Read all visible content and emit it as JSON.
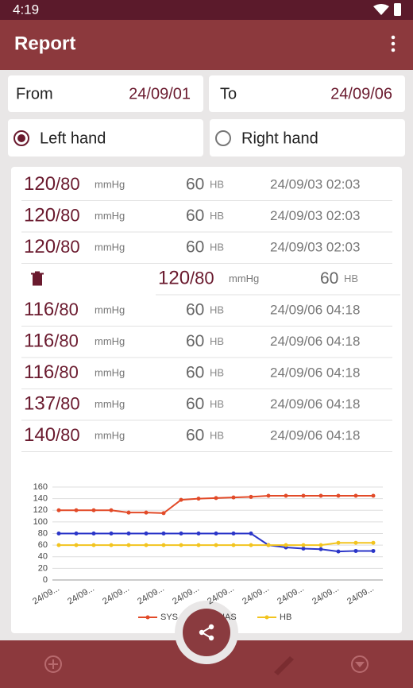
{
  "status_bar": {
    "time": "4:19"
  },
  "toolbar": {
    "title": "Report"
  },
  "range": {
    "from_label": "From",
    "from_value": "24/09/01",
    "to_label": "To",
    "to_value": "24/09/06"
  },
  "hand": {
    "options": [
      "Left hand",
      "Right hand"
    ],
    "selected": 0
  },
  "records": {
    "separator": "/",
    "rows": [
      {
        "sys": 120,
        "dias": 80,
        "pressure_unit": "mmHg",
        "hb": 60,
        "hb_unit": "HB",
        "datetime": "24/09/03 02:03"
      },
      {
        "sys": 120,
        "dias": 80,
        "pressure_unit": "mmHg",
        "hb": 60,
        "hb_unit": "HB",
        "datetime": "24/09/03 02:03"
      },
      {
        "sys": 120,
        "dias": 80,
        "pressure_unit": "mmHg",
        "hb": 60,
        "hb_unit": "HB",
        "datetime": "24/09/03 02:03"
      },
      {
        "sys": 120,
        "dias": 80,
        "pressure_unit": "mmHg",
        "hb": 60,
        "hb_unit": "HB",
        "swiped": true
      },
      {
        "sys": 116,
        "dias": 80,
        "pressure_unit": "mmHg",
        "hb": 60,
        "hb_unit": "HB",
        "datetime": "24/09/06 04:18"
      },
      {
        "sys": 116,
        "dias": 80,
        "pressure_unit": "mmHg",
        "hb": 60,
        "hb_unit": "HB",
        "datetime": "24/09/06 04:18"
      },
      {
        "sys": 116,
        "dias": 80,
        "pressure_unit": "mmHg",
        "hb": 60,
        "hb_unit": "HB",
        "datetime": "24/09/06 04:18"
      },
      {
        "sys": 137,
        "dias": 80,
        "pressure_unit": "mmHg",
        "hb": 60,
        "hb_unit": "HB",
        "datetime": "24/09/06 04:18"
      },
      {
        "sys": 140,
        "dias": 80,
        "pressure_unit": "mmHg",
        "hb": 60,
        "hb_unit": "HB",
        "datetime": "24/09/06 04:18"
      }
    ]
  },
  "chart_data": {
    "type": "line",
    "categories": [
      "24/09...",
      null,
      "24/09...",
      null,
      "24/09...",
      null,
      "24/09...",
      null,
      "24/09...",
      null,
      "24/09...",
      null,
      "24/09...",
      null,
      "24/09...",
      null,
      "24/09...",
      null,
      "24/09..."
    ],
    "series": [
      {
        "name": "SYS",
        "color": "#e24a28",
        "values": [
          120,
          120,
          120,
          120,
          116,
          116,
          115,
          138,
          140,
          141,
          142,
          143,
          145,
          145,
          145,
          145,
          145,
          145,
          145
        ]
      },
      {
        "name": "DIAS",
        "color": "#2a35c8",
        "values": [
          80,
          80,
          80,
          80,
          80,
          80,
          80,
          80,
          80,
          80,
          80,
          80,
          60,
          56,
          54,
          53,
          49,
          50,
          50
        ]
      },
      {
        "name": "HB",
        "color": "#f2c41e",
        "values": [
          60,
          60,
          60,
          60,
          60,
          60,
          60,
          60,
          60,
          60,
          60,
          60,
          60,
          60,
          60,
          60,
          64,
          64,
          64
        ]
      }
    ],
    "ylim": [
      0,
      160
    ],
    "yticks": [
      0,
      20,
      40,
      60,
      80,
      100,
      120,
      140,
      160
    ],
    "grid": true,
    "legend": "bottom"
  }
}
